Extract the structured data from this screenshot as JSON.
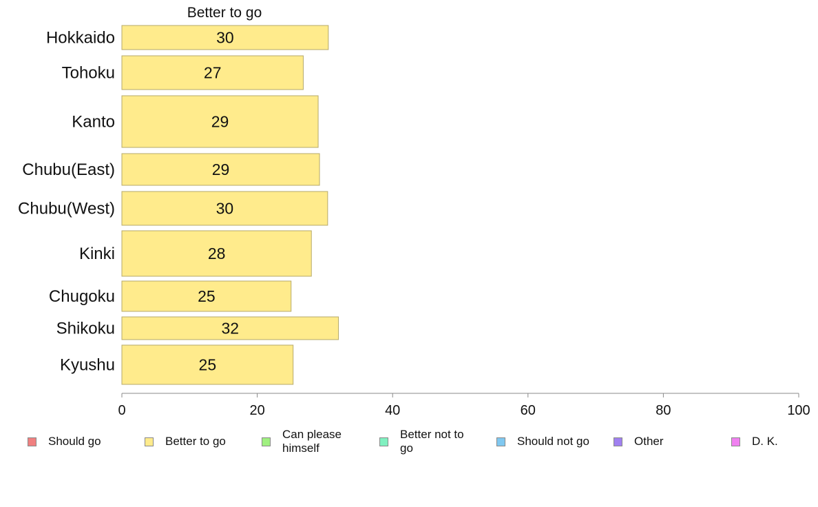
{
  "chart_data": {
    "type": "bar",
    "orientation": "horizontal",
    "title": "Better to go",
    "categories": [
      "Hokkaido",
      "Tohoku",
      "Kanto",
      "Chubu(East)",
      "Chubu(West)",
      "Kinki",
      "Chugoku",
      "Shikoku",
      "Kyushu"
    ],
    "series": [
      {
        "name": "Better to go",
        "color": "#FFEB8C",
        "values": [
          30.5,
          26.8,
          29.0,
          29.2,
          30.4,
          28.0,
          25.0,
          32.0,
          25.3
        ],
        "labels": [
          "30",
          "27",
          "29",
          "29",
          "30",
          "28",
          "25",
          "32",
          "25"
        ]
      }
    ],
    "xlim": [
      0,
      100
    ],
    "xticks": [
      "0",
      "20",
      "40",
      "60",
      "80",
      "100"
    ],
    "grid": false,
    "legend_position": "bottom"
  },
  "legend": [
    {
      "label": "Should go",
      "color": "#F08080"
    },
    {
      "label": "Better to go",
      "color": "#FFEB8C"
    },
    {
      "label": "Can please himself",
      "color": "#A0F080"
    },
    {
      "label": "Better not to go",
      "color": "#80F0C0"
    },
    {
      "label": "Should not go",
      "color": "#80C8F0"
    },
    {
      "label": "Other",
      "color": "#A080F0"
    },
    {
      "label": "D. K.",
      "color": "#F080F0"
    }
  ]
}
